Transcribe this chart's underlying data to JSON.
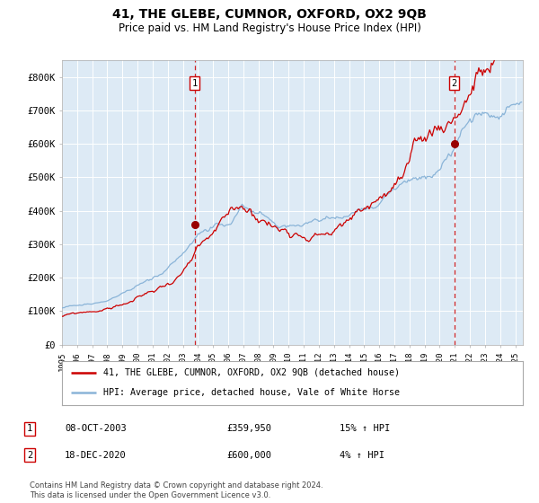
{
  "title": "41, THE GLEBE, CUMNOR, OXFORD, OX2 9QB",
  "subtitle": "Price paid vs. HM Land Registry's House Price Index (HPI)",
  "title_fontsize": 10,
  "subtitle_fontsize": 8.5,
  "x_start_year": 1995,
  "x_end_year": 2025,
  "ylim": [
    0,
    850000
  ],
  "yticks": [
    0,
    100000,
    200000,
    300000,
    400000,
    500000,
    600000,
    700000,
    800000
  ],
  "ytick_labels": [
    "£0",
    "£100K",
    "£200K",
    "£300K",
    "£400K",
    "£500K",
    "£600K",
    "£700K",
    "£800K"
  ],
  "hpi_color": "#8ab4d8",
  "price_color": "#cc0000",
  "marker_color": "#990000",
  "vline_color": "#cc0000",
  "bg_color": "#ddeaf5",
  "grid_color": "#c8d8e8",
  "sale1_year": 2003.77,
  "sale1_price": 359950,
  "sale2_year": 2020.96,
  "sale2_price": 600000,
  "legend_label1": "41, THE GLEBE, CUMNOR, OXFORD, OX2 9QB (detached house)",
  "legend_label2": "HPI: Average price, detached house, Vale of White Horse",
  "table_row1": [
    "1",
    "08-OCT-2003",
    "£359,950",
    "15% ↑ HPI"
  ],
  "table_row2": [
    "2",
    "18-DEC-2020",
    "£600,000",
    "4% ↑ HPI"
  ],
  "footer": "Contains HM Land Registry data © Crown copyright and database right 2024.\nThis data is licensed under the Open Government Licence v3.0."
}
